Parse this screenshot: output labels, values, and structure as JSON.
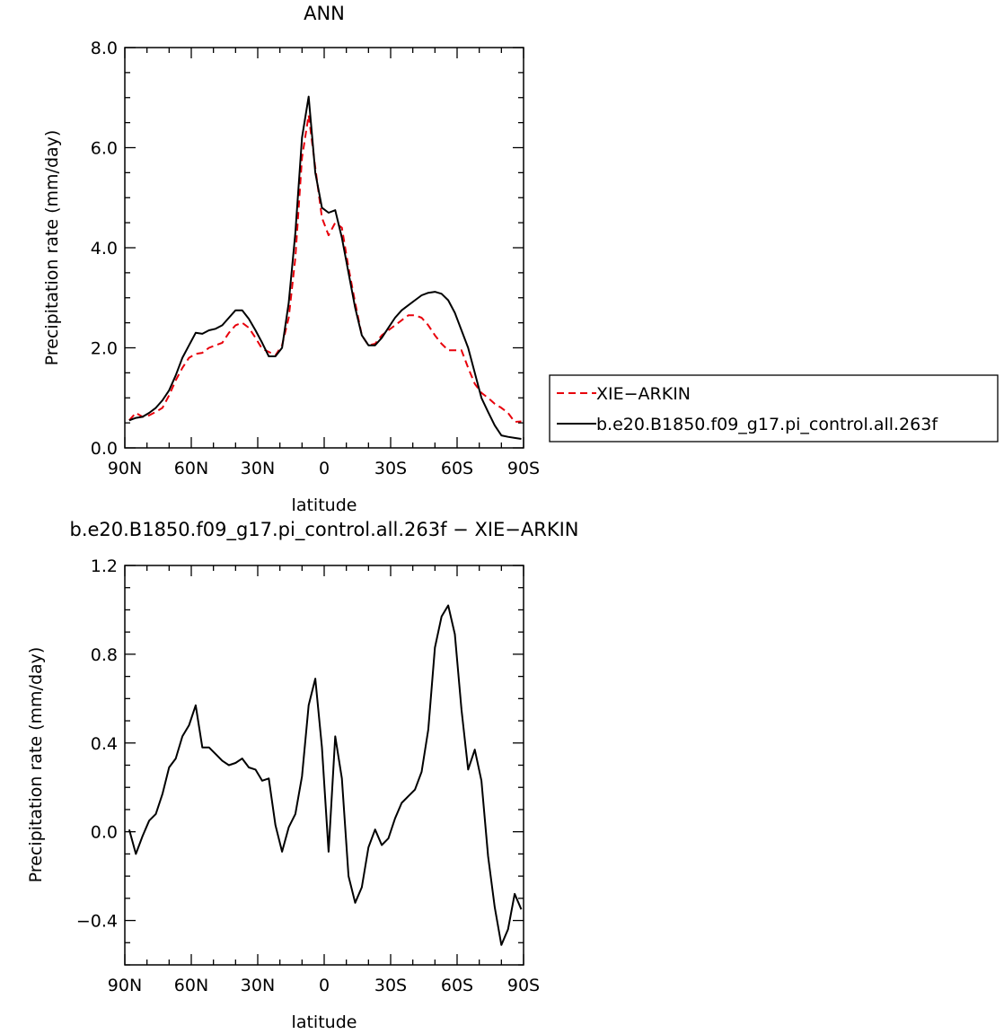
{
  "chart_data": [
    {
      "type": "line",
      "title": "ANN",
      "xlabel": "latitude",
      "ylabel": "Precipitation rate (mm/day)",
      "xlim": [
        -90,
        90
      ],
      "ylim": [
        0,
        8
      ],
      "x_ticks": [
        -90,
        -60,
        -30,
        0,
        30,
        60,
        90
      ],
      "x_tick_labels": [
        "90N",
        "60N",
        "30N",
        "0",
        "30S",
        "60S",
        "90S"
      ],
      "y_ticks": [
        0,
        2,
        4,
        6,
        8
      ],
      "y_tick_labels": [
        "0.0",
        "2.0",
        "4.0",
        "6.0",
        "8.0"
      ],
      "grid": false,
      "legend_position": "right",
      "series": [
        {
          "name": "XIE−ARKIN",
          "color": "#e8000b",
          "dash": "dashed",
          "x": [
            -88,
            -85,
            -82,
            -79,
            -76,
            -73,
            -70,
            -67,
            -64,
            -61,
            -58,
            -55,
            -52,
            -49,
            -46,
            -43,
            -40,
            -37,
            -34,
            -31,
            -28,
            -25,
            -22,
            -19,
            -16,
            -13,
            -10,
            -7,
            -4,
            -1,
            2,
            5,
            8,
            11,
            14,
            17,
            20,
            23,
            26,
            29,
            32,
            35,
            38,
            41,
            44,
            47,
            50,
            53,
            56,
            59,
            62,
            65,
            68,
            71,
            74,
            77,
            80,
            83,
            86,
            89
          ],
          "values": [
            0.55,
            0.7,
            0.62,
            0.65,
            0.72,
            0.8,
            1.05,
            1.35,
            1.6,
            1.8,
            1.88,
            1.9,
            2.0,
            2.05,
            2.1,
            2.3,
            2.45,
            2.5,
            2.4,
            2.2,
            1.98,
            1.92,
            1.85,
            2.05,
            2.6,
            3.8,
            5.8,
            6.65,
            5.6,
            4.6,
            4.25,
            4.5,
            4.4,
            3.6,
            2.9,
            2.25,
            2.05,
            2.08,
            2.25,
            2.35,
            2.45,
            2.55,
            2.65,
            2.65,
            2.6,
            2.45,
            2.25,
            2.08,
            1.95,
            1.95,
            1.95,
            1.6,
            1.28,
            1.1,
            1.0,
            0.88,
            0.8,
            0.7,
            0.52,
            0.53
          ]
        },
        {
          "name": "b.e20.B1850.f09_g17.pi_control.all.263f",
          "color": "#000000",
          "dash": "solid",
          "x": [
            -88,
            -85,
            -82,
            -79,
            -76,
            -73,
            -70,
            -67,
            -64,
            -61,
            -58,
            -55,
            -52,
            -49,
            -46,
            -43,
            -40,
            -37,
            -34,
            -31,
            -28,
            -25,
            -22,
            -19,
            -16,
            -13,
            -10,
            -7,
            -4,
            -1,
            2,
            5,
            8,
            11,
            14,
            17,
            20,
            23,
            26,
            29,
            32,
            35,
            38,
            41,
            44,
            47,
            50,
            53,
            56,
            59,
            62,
            65,
            68,
            71,
            74,
            77,
            80,
            83,
            86,
            89
          ],
          "values": [
            0.55,
            0.6,
            0.62,
            0.7,
            0.8,
            0.95,
            1.15,
            1.45,
            1.8,
            2.05,
            2.3,
            2.28,
            2.35,
            2.38,
            2.45,
            2.6,
            2.75,
            2.75,
            2.58,
            2.35,
            2.1,
            1.83,
            1.83,
            2.0,
            2.9,
            4.3,
            6.2,
            7.02,
            5.5,
            4.8,
            4.7,
            4.75,
            4.2,
            3.5,
            2.8,
            2.25,
            2.05,
            2.05,
            2.2,
            2.4,
            2.6,
            2.75,
            2.85,
            2.95,
            3.05,
            3.1,
            3.12,
            3.08,
            2.95,
            2.7,
            2.35,
            2.0,
            1.5,
            1.0,
            0.72,
            0.45,
            0.25,
            0.22,
            0.2,
            0.18
          ]
        }
      ]
    },
    {
      "type": "line",
      "title": "b.e20.B1850.f09_g17.pi_control.all.263f − XIE−ARKIN",
      "xlabel": "latitude",
      "ylabel": "Precipitation rate (mm/day)",
      "xlim": [
        -90,
        90
      ],
      "ylim": [
        -0.6,
        1.2
      ],
      "x_ticks": [
        -90,
        -60,
        -30,
        0,
        30,
        60,
        90
      ],
      "x_tick_labels": [
        "90N",
        "60N",
        "30N",
        "0",
        "30S",
        "60S",
        "90S"
      ],
      "y_ticks": [
        -0.4,
        0.0,
        0.4,
        0.8,
        1.2
      ],
      "y_tick_labels": [
        "−0.4",
        "0.0",
        "0.4",
        "0.8",
        "1.2"
      ],
      "grid": false,
      "series": [
        {
          "color": "#000000",
          "dash": "solid",
          "x": [
            -88,
            -85,
            -82,
            -79,
            -76,
            -73,
            -70,
            -67,
            -64,
            -61,
            -58,
            -55,
            -52,
            -49,
            -46,
            -43,
            -40,
            -37,
            -34,
            -31,
            -28,
            -25,
            -22,
            -19,
            -16,
            -13,
            -10,
            -7,
            -4,
            -1,
            2,
            5,
            8,
            11,
            14,
            17,
            20,
            23,
            26,
            29,
            32,
            35,
            38,
            41,
            44,
            47,
            50,
            53,
            56,
            59,
            62,
            65,
            68,
            71,
            74,
            77,
            80,
            83,
            86,
            89
          ],
          "values": [
            0.01,
            -0.1,
            -0.02,
            0.05,
            0.08,
            0.17,
            0.29,
            0.33,
            0.43,
            0.48,
            0.57,
            0.38,
            0.38,
            0.35,
            0.32,
            0.3,
            0.31,
            0.33,
            0.29,
            0.28,
            0.23,
            0.24,
            0.03,
            -0.09,
            0.02,
            0.08,
            0.25,
            0.57,
            0.69,
            0.38,
            -0.09,
            0.43,
            0.24,
            -0.2,
            -0.32,
            -0.25,
            -0.07,
            0.01,
            -0.06,
            -0.03,
            0.06,
            0.13,
            0.16,
            0.19,
            0.27,
            0.46,
            0.83,
            0.97,
            1.02,
            0.89,
            0.55,
            0.28,
            0.37,
            0.23,
            -0.11,
            -0.34,
            -0.51,
            -0.44,
            -0.28,
            -0.35
          ]
        }
      ]
    }
  ]
}
